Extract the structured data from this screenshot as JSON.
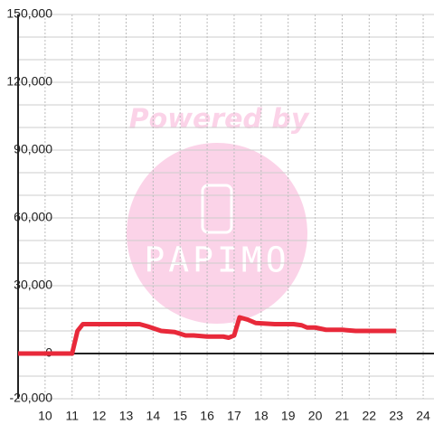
{
  "chart_data": {
    "type": "line",
    "watermark": {
      "line1": "Powered by",
      "line2": "PAPIMO"
    },
    "xlim": [
      9,
      24.4
    ],
    "xticks": [
      10,
      11,
      12,
      13,
      14,
      15,
      16,
      17,
      18,
      19,
      20,
      21,
      22,
      23,
      24
    ],
    "ylim": [
      -20000,
      150000
    ],
    "yticks": [
      {
        "value": -20000,
        "label": "-20,000"
      },
      {
        "value": 0,
        "label": "0"
      },
      {
        "value": 30000,
        "label": "30,000"
      },
      {
        "value": 60000,
        "label": "60,000"
      },
      {
        "value": 90000,
        "label": "90,000"
      },
      {
        "value": 120000,
        "label": "120,000"
      },
      {
        "value": 150000,
        "label": "150,000"
      }
    ],
    "yminorticks": [
      -10000,
      10000,
      20000,
      40000,
      50000,
      70000,
      80000,
      100000,
      110000,
      130000,
      140000
    ],
    "grid": true,
    "series": [
      {
        "color": "#e8293a",
        "x": [
          9,
          11,
          11.2,
          11.4,
          13.5,
          13.8,
          14.3,
          14.8,
          15.2,
          15.5,
          16,
          16.6,
          16.8,
          17,
          17.2,
          17.5,
          17.8,
          18.5,
          19.2,
          19.5,
          19.7,
          20,
          20.4,
          21,
          21.5,
          23
        ],
        "values": [
          0,
          0,
          10000,
          13000,
          13000,
          12000,
          10000,
          9500,
          8000,
          8000,
          7500,
          7500,
          7000,
          8000,
          16000,
          15000,
          13500,
          13000,
          13000,
          12500,
          11500,
          11500,
          10500,
          10500,
          10000,
          10000
        ]
      }
    ]
  }
}
